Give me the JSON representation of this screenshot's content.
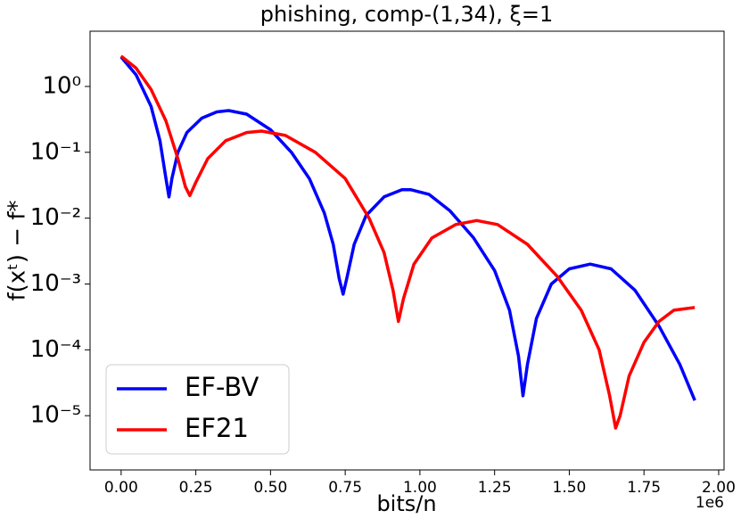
{
  "chart_data": {
    "type": "line",
    "title": "phishing, comp-(1,34), ξ=1",
    "xlabel": "bits/n",
    "ylabel": "f(xᵗ) − f*",
    "x_offset_label": "1e6",
    "xlim": [
      -0.104,
      2.018
    ],
    "xticks": [
      {
        "value": 0,
        "label": "0.00"
      },
      {
        "value": 0.25,
        "label": "0.25"
      },
      {
        "value": 0.5,
        "label": "0.50"
      },
      {
        "value": 0.75,
        "label": "0.75"
      },
      {
        "value": 1,
        "label": "1.00"
      },
      {
        "value": 1.25,
        "label": "1.25"
      },
      {
        "value": 1.5,
        "label": "1.50"
      },
      {
        "value": 1.75,
        "label": "1.75"
      },
      {
        "value": 2,
        "label": "2.00"
      }
    ],
    "ylim": [
      1.5e-06,
      6.9
    ],
    "yscale": "log",
    "yticks": [
      {
        "value": 1,
        "label": "10⁰"
      },
      {
        "value": 0.1,
        "label": "10⁻¹"
      },
      {
        "value": 0.01,
        "label": "10⁻²"
      },
      {
        "value": 0.001,
        "label": "10⁻³"
      },
      {
        "value": 0.0001,
        "label": "10⁻⁴"
      },
      {
        "value": 1e-05,
        "label": "10⁻⁵"
      }
    ],
    "legend": "lower left",
    "series": [
      {
        "name": "EF-BV",
        "color": "#0000ff",
        "x": [
          0,
          0.05,
          0.1,
          0.13,
          0.15,
          0.16,
          0.17,
          0.19,
          0.22,
          0.27,
          0.32,
          0.36,
          0.42,
          0.5,
          0.57,
          0.63,
          0.68,
          0.71,
          0.73,
          0.743,
          0.755,
          0.78,
          0.82,
          0.88,
          0.94,
          0.97,
          1.03,
          1.1,
          1.18,
          1.25,
          1.3,
          1.33,
          1.345,
          1.36,
          1.39,
          1.44,
          1.5,
          1.57,
          1.64,
          1.72,
          1.8,
          1.87,
          1.92
        ],
        "values": [
          2.8,
          1.5,
          0.5,
          0.15,
          0.04,
          0.021,
          0.04,
          0.1,
          0.2,
          0.33,
          0.41,
          0.43,
          0.38,
          0.22,
          0.1,
          0.04,
          0.012,
          0.004,
          0.0012,
          0.0007,
          0.0012,
          0.004,
          0.011,
          0.021,
          0.027,
          0.027,
          0.023,
          0.013,
          0.005,
          0.0016,
          0.0004,
          8e-05,
          2e-05,
          6e-05,
          0.0003,
          0.001,
          0.0017,
          0.002,
          0.0017,
          0.0008,
          0.00023,
          6e-05,
          1.7e-05
        ]
      },
      {
        "name": "EF21",
        "color": "#ff0000",
        "x": [
          0,
          0.05,
          0.1,
          0.15,
          0.19,
          0.215,
          0.23,
          0.25,
          0.29,
          0.35,
          0.42,
          0.47,
          0.55,
          0.65,
          0.75,
          0.83,
          0.88,
          0.91,
          0.928,
          0.945,
          0.98,
          1.04,
          1.12,
          1.19,
          1.26,
          1.36,
          1.46,
          1.54,
          1.6,
          1.635,
          1.655,
          1.67,
          1.7,
          1.75,
          1.8,
          1.85,
          1.92
        ],
        "values": [
          2.9,
          1.9,
          0.9,
          0.3,
          0.08,
          0.03,
          0.022,
          0.035,
          0.08,
          0.15,
          0.2,
          0.21,
          0.18,
          0.1,
          0.04,
          0.01,
          0.003,
          0.0008,
          0.00027,
          0.0006,
          0.002,
          0.005,
          0.008,
          0.0092,
          0.008,
          0.004,
          0.0013,
          0.0004,
          0.0001,
          2e-05,
          6.5e-06,
          1e-05,
          4e-05,
          0.00013,
          0.00027,
          0.0004,
          0.00044
        ]
      }
    ]
  }
}
